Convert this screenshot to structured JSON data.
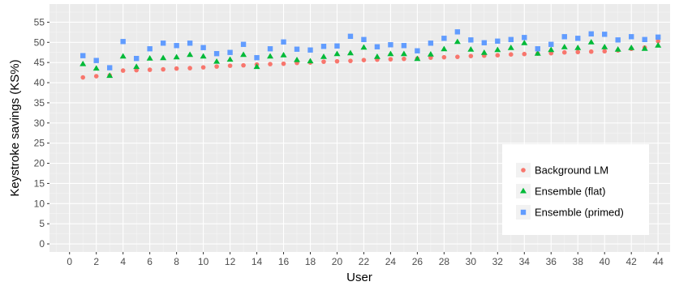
{
  "chart_data": {
    "type": "scatter",
    "xlabel": "User",
    "ylabel": "Keystroke savings (KS%)",
    "xlim": [
      -1.5,
      44.9
    ],
    "ylim": [
      -2,
      59.5
    ],
    "xticks": [
      0,
      2,
      4,
      6,
      8,
      10,
      12,
      14,
      16,
      18,
      20,
      22,
      24,
      26,
      28,
      30,
      32,
      34,
      36,
      38,
      40,
      42,
      44
    ],
    "yticks": [
      0,
      5,
      10,
      15,
      20,
      25,
      30,
      35,
      40,
      45,
      50,
      55
    ],
    "grid": true,
    "legend_position": "bottom-right",
    "panel_background": "#ebebeb",
    "x": [
      1,
      2,
      3,
      4,
      5,
      6,
      7,
      8,
      9,
      10,
      11,
      12,
      13,
      14,
      15,
      16,
      17,
      18,
      19,
      20,
      21,
      22,
      23,
      24,
      25,
      26,
      27,
      28,
      29,
      30,
      31,
      32,
      33,
      34,
      35,
      36,
      37,
      38,
      39,
      40,
      41,
      42,
      43,
      44
    ],
    "series": [
      {
        "name": "Background LM",
        "marker": "circle",
        "color": "#f8766d",
        "values": [
          41.3,
          41.6,
          41.8,
          43.0,
          43.1,
          43.2,
          43.3,
          43.5,
          43.6,
          43.8,
          44.0,
          44.2,
          44.3,
          44.5,
          44.6,
          44.7,
          44.9,
          45.0,
          45.2,
          45.3,
          45.4,
          45.6,
          45.7,
          45.8,
          45.9,
          46.0,
          46.2,
          46.3,
          46.4,
          46.6,
          46.7,
          46.8,
          47.0,
          47.1,
          47.2,
          47.3,
          47.5,
          47.6,
          47.7,
          47.8,
          48.0,
          48.4,
          48.7,
          50.3
        ]
      },
      {
        "name": "Ensemble (flat)",
        "marker": "triangle",
        "color": "#00ba38",
        "values": [
          44.6,
          43.5,
          41.7,
          46.5,
          43.9,
          46.0,
          46.1,
          46.3,
          46.9,
          46.5,
          45.2,
          45.7,
          46.9,
          43.9,
          46.5,
          46.8,
          45.6,
          45.3,
          46.4,
          47.1,
          47.3,
          48.7,
          46.4,
          47.1,
          47.1,
          45.9,
          47.0,
          48.3,
          50.1,
          48.2,
          47.4,
          48.1,
          48.6,
          49.8,
          47.2,
          48.1,
          48.8,
          48.6,
          50.0,
          48.8,
          48.2,
          48.6,
          48.4,
          49.2
        ]
      },
      {
        "name": "Ensemble (primed)",
        "marker": "square",
        "color": "#619cff",
        "values": [
          46.7,
          45.5,
          43.7,
          50.2,
          46.0,
          48.4,
          49.8,
          49.2,
          49.8,
          48.7,
          47.2,
          47.5,
          49.5,
          46.2,
          48.4,
          50.1,
          48.3,
          48.1,
          49.0,
          49.1,
          51.5,
          50.7,
          48.9,
          49.4,
          49.2,
          47.9,
          49.8,
          51.0,
          52.6,
          50.6,
          49.9,
          50.3,
          50.7,
          51.2,
          48.4,
          49.5,
          51.4,
          51.0,
          52.1,
          52.0,
          50.6,
          51.4,
          50.7,
          51.3
        ]
      }
    ]
  }
}
